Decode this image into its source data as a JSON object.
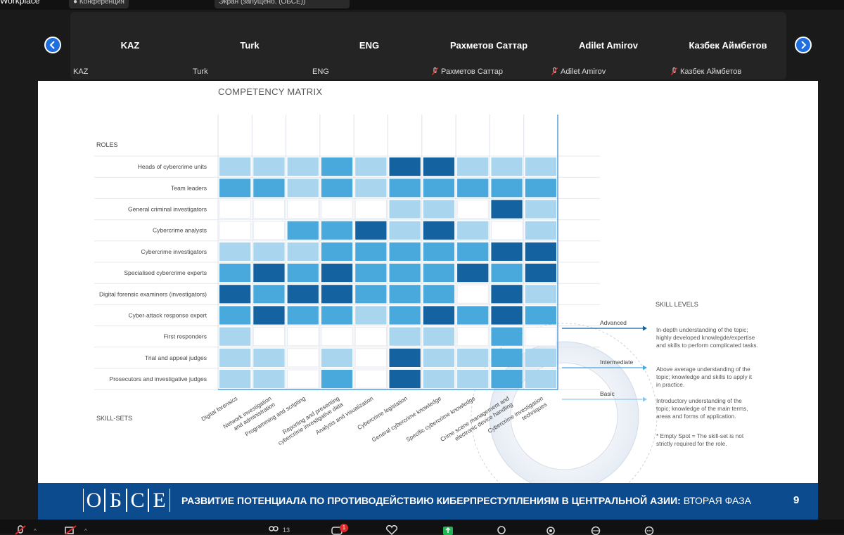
{
  "app": {
    "title": "Workplace",
    "conf_label": "Конференция",
    "share_label": "Экран (запущено. (ОБСЕ))"
  },
  "participants": [
    {
      "name": "KAZ",
      "label": "KAZ",
      "muted": false
    },
    {
      "name": "Turk",
      "label": "Turk",
      "muted": false
    },
    {
      "name": "ENG",
      "label": "ENG",
      "muted": false
    },
    {
      "name": "Рахметов Саттар",
      "label": "Рахметов Саттар",
      "muted": true
    },
    {
      "name": "Adilet Amirov",
      "label": "Adilet Amirov",
      "muted": true
    },
    {
      "name": "Казбек Аймбетов",
      "label": "Казбек Аймбетов",
      "muted": true
    }
  ],
  "slide": {
    "title": "COMPETENCY MATRIX",
    "roles_header": "ROLES",
    "skillsets_header": "SKILL-SETS",
    "roles": [
      "Heads of cybercrime units",
      "Team leaders",
      "General criminal investigators",
      "Cybercrime analysts",
      "Cybercrime investigators",
      "Specialised cybercrime experts",
      "Digital forensic examiners (investigators)",
      "Cyber-attack response expert",
      "First responders",
      "Trial and appeal judges",
      "Prosecutors and investigative judges"
    ],
    "skills": [
      "Digital forensics",
      "Network investigation and administration",
      "Programming and scripting",
      "Reporting and presenting cybercrime investigative data",
      "Analysis and visualization",
      "Cybercrime legislation",
      "General cybercrime knowledge",
      "Specific cybercrime knowledge",
      "Crime scene management and electronic device handling",
      "Cybercrime investigation techniques"
    ],
    "matrix": [
      [
        1,
        1,
        1,
        2,
        1,
        3,
        3,
        1,
        1,
        1
      ],
      [
        2,
        2,
        1,
        2,
        1,
        2,
        2,
        2,
        2,
        2
      ],
      [
        0,
        0,
        0,
        0,
        0,
        1,
        1,
        0,
        3,
        1
      ],
      [
        0,
        0,
        2,
        2,
        3,
        1,
        3,
        1,
        0,
        1
      ],
      [
        1,
        1,
        1,
        2,
        2,
        2,
        2,
        2,
        3,
        3
      ],
      [
        2,
        3,
        2,
        3,
        2,
        2,
        2,
        3,
        2,
        3
      ],
      [
        3,
        2,
        3,
        3,
        2,
        2,
        2,
        0,
        3,
        1
      ],
      [
        2,
        3,
        2,
        2,
        1,
        2,
        3,
        2,
        3,
        2
      ],
      [
        1,
        0,
        0,
        0,
        0,
        1,
        1,
        0,
        2,
        0
      ],
      [
        1,
        1,
        0,
        1,
        0,
        3,
        1,
        1,
        2,
        1
      ],
      [
        1,
        1,
        0,
        2,
        0,
        3,
        1,
        1,
        2,
        1
      ]
    ],
    "level_colors": [
      "#ffffff",
      "#a9d6ee",
      "#4aa9dc",
      "#14629f"
    ],
    "skill_levels_title": "SKILL LEVELS",
    "levels": [
      {
        "name": "Advanced",
        "desc": [
          "In-depth understanding of the topic;",
          "highly developed knowlegde/expertise",
          "and skills to perform complicated tasks."
        ]
      },
      {
        "name": "Intermediate",
        "desc": [
          "Above average understanding of the",
          "topic; knowledge and skills to apply it",
          "in practice."
        ]
      },
      {
        "name": "Basic",
        "desc": [
          "Introductory understanding of the",
          "topic; knowledge of the main terms,",
          "areas and forms of application."
        ]
      }
    ],
    "empty_note": [
      "* Empty Spot = The skill-set is not",
      "strictly required for the role."
    ]
  },
  "footer": {
    "logo_letters": [
      "О",
      "Б",
      "С",
      "Е"
    ],
    "title_bold": "РАЗВИТИЕ ПОТЕНЦИАЛА ПО ПРОТИВОДЕЙСТВИЮ КИБЕРПРЕСТУПЛЕНИЯМ В ЦЕНТРАЛЬНОЙ АЗИИ:",
    "title_light": " ВТОРАЯ ФАЗА",
    "page": "9"
  },
  "toolbar": {
    "participants_count": "13",
    "chat_badge": "1"
  }
}
